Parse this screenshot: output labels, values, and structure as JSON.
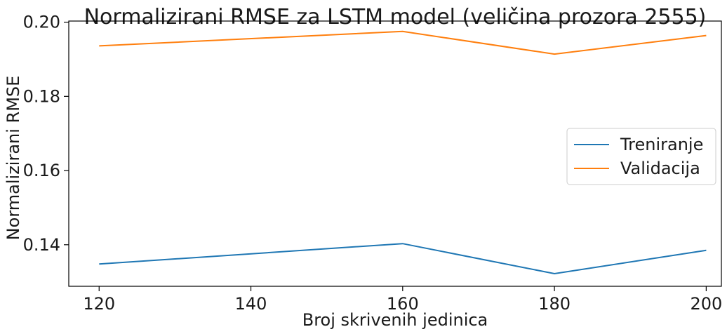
{
  "chart_data": {
    "type": "line",
    "title": "Normalizirani RMSE za LSTM model (veličina prozora 2555)",
    "xlabel": "Broj skrivenih jedinica",
    "ylabel": "Normalizirani RMSE",
    "x": [
      120,
      160,
      180,
      200
    ],
    "xticks": [
      120,
      140,
      160,
      180,
      200
    ],
    "xtick_labels": [
      "120",
      "140",
      "160",
      "180",
      "200"
    ],
    "yticks": [
      0.14,
      0.16,
      0.18,
      0.2
    ],
    "ytick_labels": [
      "0.14",
      "0.16",
      "0.18",
      "0.20"
    ],
    "xlim": [
      116,
      202
    ],
    "ylim": [
      0.1288,
      0.2003
    ],
    "grid": false,
    "legend_position": "center-right",
    "series": [
      {
        "name": "Treniranje",
        "color": "#1f77b4",
        "values": [
          0.1348,
          0.1403,
          0.1322,
          0.1385
        ]
      },
      {
        "name": "Validacija",
        "color": "#ff7f0e",
        "values": [
          0.1936,
          0.1975,
          0.1914,
          0.1964
        ]
      }
    ]
  }
}
